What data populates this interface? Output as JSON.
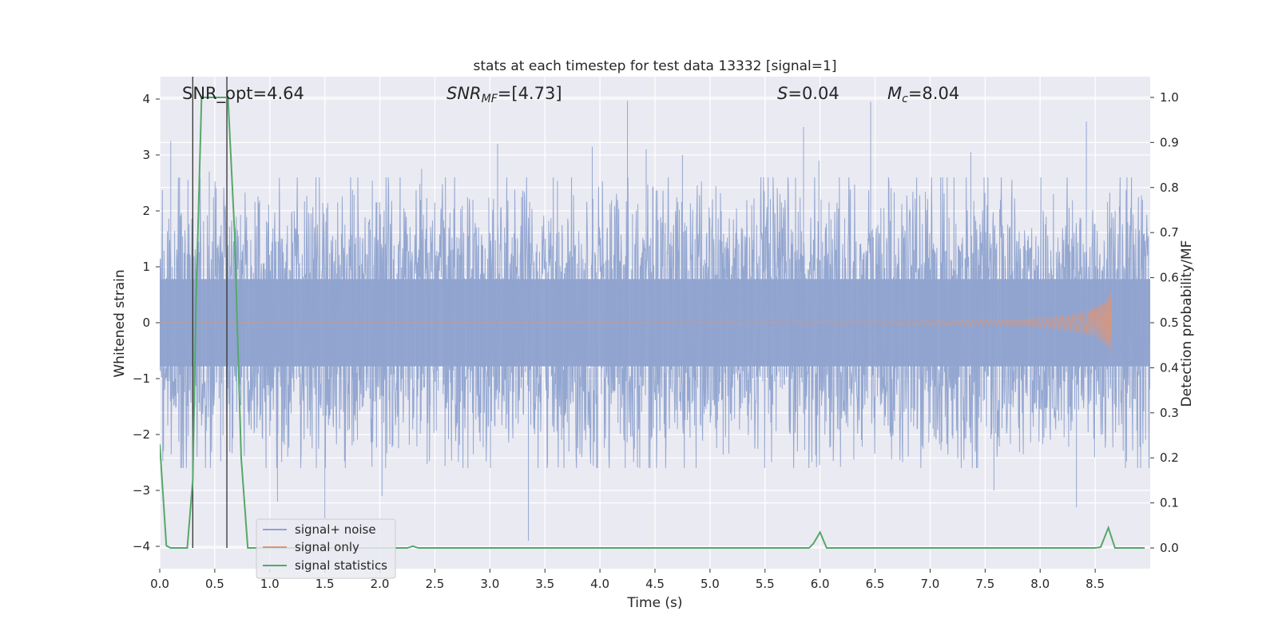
{
  "chart_data": {
    "type": "line",
    "title": "stats at each timestep for test data 13332 [signal=1]",
    "xlabel": "Time (s)",
    "ylabel_left": "Whitened strain",
    "ylabel_right": "Detection probability/MF",
    "xlim": [
      0.0,
      9.0
    ],
    "ylim_left": [
      -4.4,
      4.4
    ],
    "ylim_right": [
      -0.046,
      1.046
    ],
    "x_ticks": [
      0.0,
      0.5,
      1.0,
      1.5,
      2.0,
      2.5,
      3.0,
      3.5,
      4.0,
      4.5,
      5.0,
      5.5,
      6.0,
      6.5,
      7.0,
      7.5,
      8.0,
      8.5
    ],
    "x_tick_labels": [
      "0.0",
      "0.5",
      "1.0",
      "1.5",
      "2.0",
      "2.5",
      "3.0",
      "3.5",
      "4.0",
      "4.5",
      "5.0",
      "5.5",
      "6.0",
      "6.5",
      "7.0",
      "7.5",
      "8.0",
      "8.5"
    ],
    "y_left_ticks": [
      -4,
      -3,
      -2,
      -1,
      0,
      1,
      2,
      3,
      4
    ],
    "y_left_tick_labels": [
      "−4",
      "−3",
      "−2",
      "−1",
      "0",
      "1",
      "2",
      "3",
      "4"
    ],
    "y_right_ticks": [
      0.0,
      0.1,
      0.2,
      0.3,
      0.4,
      0.5,
      0.6,
      0.7,
      0.8,
      0.9,
      1.0
    ],
    "y_right_tick_labels": [
      "0.0",
      "0.1",
      "0.2",
      "0.3",
      "0.4",
      "0.5",
      "0.6",
      "0.7",
      "0.8",
      "0.9",
      "1.0"
    ],
    "annotations": {
      "snr_opt": "SNR_opt=4.64",
      "snr_mf_base": "SNR",
      "snr_mf_sub": "MF",
      "snr_mf_value": "=[4.73]",
      "s_symbol": "S",
      "s_value": "=0.04",
      "mc_base": "M",
      "mc_sub": "c",
      "mc_value": "=8.04"
    },
    "vlines_x": [
      0.3,
      0.61
    ],
    "legend": {
      "position": "lower-left",
      "entries": [
        "signal+ noise",
        "signal only",
        "signal statistics"
      ]
    },
    "colors": {
      "noise": "#8fa3cf",
      "signal": "#d9967c",
      "stats": "#55a868",
      "background": "#eaeaf2",
      "grid": "#ffffff",
      "vline": "#333333"
    },
    "series": [
      {
        "name": "signal+ noise",
        "axis": "left",
        "style": "noise-band",
        "x_start": 0.0,
        "x_end": 9.0,
        "core_amplitude": 0.78,
        "typical_extreme": [
          -2.2,
          2.3
        ],
        "peaks_x": [
          0.1,
          0.45,
          1.07,
          1.5,
          2.02,
          2.38,
          3.07,
          3.35,
          3.93,
          4.25,
          4.42,
          4.75,
          5.85,
          5.99,
          6.46,
          7.37,
          7.58,
          8.33,
          8.42,
          8.93
        ],
        "peaks_y": [
          3.25,
          2.7,
          -3.2,
          -3.5,
          -3.1,
          2.75,
          3.2,
          -3.9,
          3.15,
          3.97,
          3.1,
          3.0,
          3.5,
          2.9,
          3.95,
          3.05,
          -3.0,
          -3.3,
          3.6,
          2.2
        ]
      },
      {
        "name": "signal only",
        "axis": "left",
        "style": "chirp",
        "x_start": 0.0,
        "x_end": 8.65,
        "amplitude_at_end": 0.58,
        "amplitude_at_start": 0.01
      },
      {
        "name": "signal statistics",
        "axis": "right",
        "x": [
          0.0,
          0.06,
          0.1,
          0.25,
          0.3,
          0.33,
          0.38,
          0.62,
          0.68,
          0.74,
          0.8,
          2.25,
          2.3,
          2.35,
          2.4,
          5.9,
          5.94,
          6.0,
          6.06,
          8.5,
          8.55,
          8.62,
          8.68,
          8.9,
          8.95
        ],
        "y": [
          0.23,
          0.005,
          0.0,
          0.0,
          0.15,
          0.55,
          1.0,
          1.0,
          0.7,
          0.2,
          0.0,
          0.0,
          0.004,
          0.0,
          0.0,
          0.0,
          0.01,
          0.035,
          0.0,
          0.0,
          0.002,
          0.045,
          0.0,
          0.0,
          0.0
        ]
      }
    ]
  }
}
